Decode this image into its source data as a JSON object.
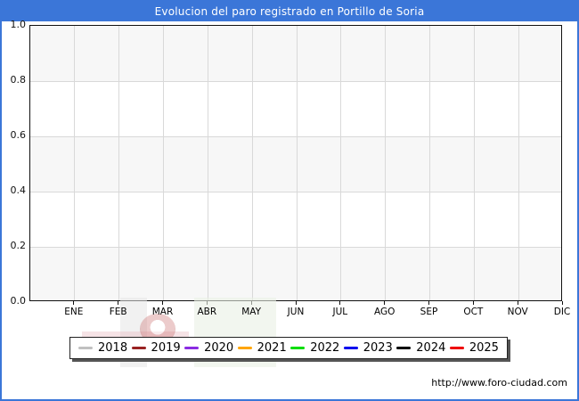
{
  "window": {
    "title": "Evolucion del paro registrado en Portillo de Soria"
  },
  "chart_data": {
    "type": "line",
    "title": "Evolucion del paro registrado en Portillo de Soria",
    "xlabel": "",
    "ylabel": "",
    "categories": [
      "ENE",
      "FEB",
      "MAR",
      "ABR",
      "MAY",
      "JUN",
      "JUL",
      "AGO",
      "SEP",
      "OCT",
      "NOV",
      "DIC"
    ],
    "ylim": [
      0.0,
      1.0
    ],
    "ytick_labels": [
      "1.0",
      "0.8",
      "0.6",
      "0.4",
      "0.2",
      "0.0"
    ],
    "grid": true,
    "legend_position": "bottom",
    "series": [
      {
        "name": "2018",
        "color": "#c0c0c0",
        "values": []
      },
      {
        "name": "2019",
        "color": "#992222",
        "values": []
      },
      {
        "name": "2020",
        "color": "#8a2be2",
        "values": []
      },
      {
        "name": "2021",
        "color": "#ffa500",
        "values": []
      },
      {
        "name": "2022",
        "color": "#00dd00",
        "values": []
      },
      {
        "name": "2023",
        "color": "#0000ee",
        "values": []
      },
      {
        "name": "2024",
        "color": "#000000",
        "values": []
      },
      {
        "name": "2025",
        "color": "#ee0000",
        "values": []
      }
    ]
  },
  "footer": {
    "url": "http://www.foro-ciudad.com"
  },
  "colors": {
    "accent": "#3b76d8",
    "plot_band": "#f7f7f7",
    "gridline": "#d9d9d9"
  }
}
